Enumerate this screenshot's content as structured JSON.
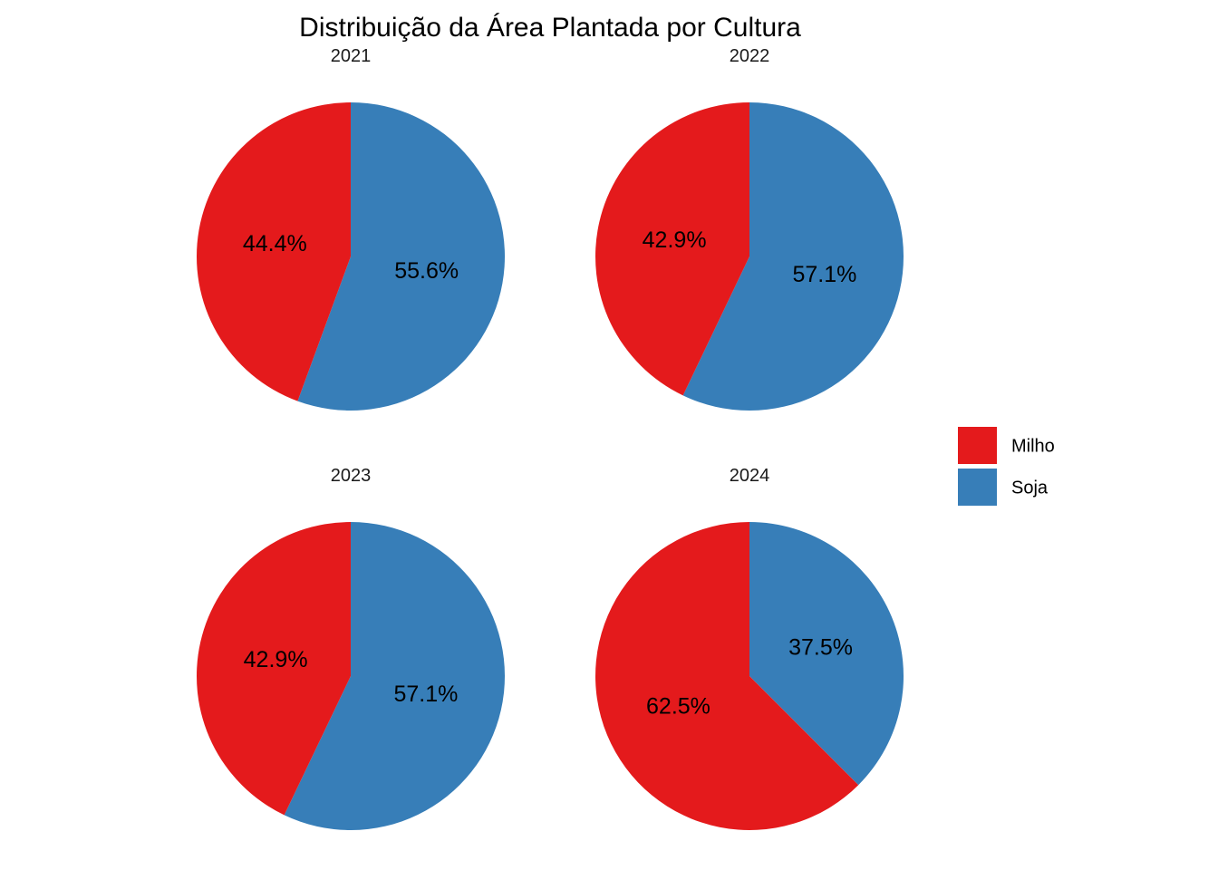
{
  "chart_data": {
    "type": "pie",
    "title": "Distribuição da Área Plantada por Cultura",
    "legend": {
      "placement": "right",
      "entries": [
        {
          "name": "Milho",
          "color": "#e41a1c"
        },
        {
          "name": "Soja",
          "color": "#377eb8"
        }
      ]
    },
    "facets": [
      {
        "label": "2021",
        "slices": [
          {
            "name": "Milho",
            "value": 44.4,
            "text": "44.4%",
            "color": "#e41a1c"
          },
          {
            "name": "Soja",
            "value": 55.6,
            "text": "55.6%",
            "color": "#377eb8"
          }
        ]
      },
      {
        "label": "2022",
        "slices": [
          {
            "name": "Milho",
            "value": 42.9,
            "text": "42.9%",
            "color": "#e41a1c"
          },
          {
            "name": "Soja",
            "value": 57.1,
            "text": "57.1%",
            "color": "#377eb8"
          }
        ]
      },
      {
        "label": "2023",
        "slices": [
          {
            "name": "Milho",
            "value": 42.9,
            "text": "42.9%",
            "color": "#e41a1c"
          },
          {
            "name": "Soja",
            "value": 57.1,
            "text": "57.1%",
            "color": "#377eb8"
          }
        ]
      },
      {
        "label": "2024",
        "slices": [
          {
            "name": "Milho",
            "value": 62.5,
            "text": "62.5%",
            "color": "#e41a1c"
          },
          {
            "name": "Soja",
            "value": 37.5,
            "text": "37.5%",
            "color": "#377eb8"
          }
        ]
      }
    ]
  }
}
